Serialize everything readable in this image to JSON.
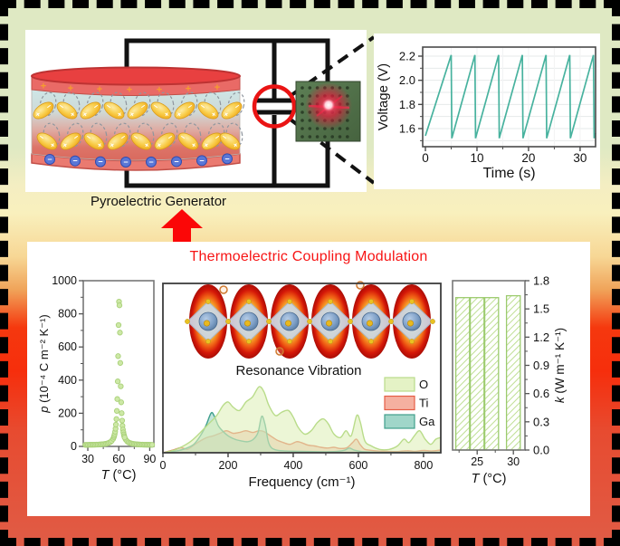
{
  "labels": {
    "pyroelectric_generator": "Pyroelectric Generator"
  },
  "bottom_panel": {
    "title": "Thermoelectric Coupling Modulation",
    "title_color": "#f71414"
  },
  "illustration": {
    "plus_symbol": "+",
    "minus_symbol": "−",
    "accent_red": "#ea1414",
    "description": "pyroelectric disk with dipoles wired to a capacitor (circled) driving a red LED on a green perfboard"
  },
  "chart_data": [
    {
      "id": "voltage-time",
      "type": "line",
      "xlabel": "Time (s)",
      "ylabel": "Voltage (V)",
      "xlim": [
        -0.53,
        33.0
      ],
      "ylim": [
        1.45,
        2.275
      ],
      "xticks": [
        0,
        10,
        20,
        30
      ],
      "ytick_labels": [
        "1.6",
        "1.8",
        "2.0",
        "2.2"
      ],
      "ytick_values": [
        1.6,
        1.8,
        2.0,
        2.2
      ],
      "line_color": "#47b29e",
      "grid": "horizontal every 0.1 V",
      "waveform": {
        "shape": "sawtooth",
        "teeth": 7,
        "first_peak_s": 5.0,
        "period_s": 4.6,
        "v_start": 1.54,
        "v_low": 1.52,
        "v_high": 2.21,
        "drop_time_s": 0.12
      }
    },
    {
      "id": "pyroelectric-coefficient",
      "type": "scatter",
      "xlabel_var": "T",
      "xlabel_rest": " (°C)",
      "ylabel_var": "p",
      "ylabel_rest": " (10⁻⁴ C m⁻² K⁻¹)",
      "xlim": [
        25.6,
        94.0
      ],
      "ylim": [
        0,
        1000
      ],
      "xticks": [
        30,
        60,
        90
      ],
      "yticks": [
        0,
        200,
        400,
        600,
        800,
        1000
      ],
      "marker_fill": "#cde8a6",
      "marker_edge": "#a9d179",
      "peak": {
        "center_C": 60.4,
        "max_value": 888,
        "baseline": 8,
        "half_width_C": 1.25
      },
      "note": "sharp pyroelectric coefficient peak near 60 °C"
    },
    {
      "id": "phonon-dos",
      "type": "area",
      "xlabel": "Frequency (cm⁻¹)",
      "annotation": "Resonance Vibration",
      "xlim": [
        0,
        853
      ],
      "ylim": [
        0,
        1
      ],
      "xticks": [
        0,
        200,
        400,
        600,
        800
      ],
      "legend_position": "right-middle",
      "y_units": "phonon DOS (arb. units, fraction of plot height)",
      "series": [
        {
          "name": "O",
          "fill": "#dff0bb",
          "stroke": "#b9dc8a",
          "fill_opacity": 0.6,
          "points": [
            [
              0,
              0
            ],
            [
              40,
              0.02
            ],
            [
              80,
              0.06
            ],
            [
              110,
              0.11
            ],
            [
              140,
              0.17
            ],
            [
              165,
              0.22
            ],
            [
              185,
              0.28
            ],
            [
              200,
              0.3
            ],
            [
              215,
              0.27
            ],
            [
              235,
              0.25
            ],
            [
              255,
              0.3
            ],
            [
              275,
              0.33
            ],
            [
              295,
              0.39
            ],
            [
              310,
              0.36
            ],
            [
              325,
              0.28
            ],
            [
              345,
              0.22
            ],
            [
              365,
              0.24
            ],
            [
              385,
              0.25
            ],
            [
              400,
              0.21
            ],
            [
              415,
              0.15
            ],
            [
              435,
              0.11
            ],
            [
              455,
              0.13
            ],
            [
              475,
              0.18
            ],
            [
              492,
              0.2
            ],
            [
              508,
              0.17
            ],
            [
              525,
              0.11
            ],
            [
              545,
              0.09
            ],
            [
              562,
              0.13
            ],
            [
              578,
              0.1
            ],
            [
              595,
              0.22
            ],
            [
              606,
              0.18
            ],
            [
              620,
              0.07
            ],
            [
              640,
              0.04
            ],
            [
              665,
              0.02
            ],
            [
              695,
              0.02
            ],
            [
              720,
              0.04
            ],
            [
              740,
              0.08
            ],
            [
              755,
              0.06
            ],
            [
              772,
              0.1
            ],
            [
              788,
              0.13
            ],
            [
              805,
              0.08
            ],
            [
              822,
              0.05
            ],
            [
              838,
              0.08
            ],
            [
              853,
              0.09
            ]
          ]
        },
        {
          "name": "Ti",
          "fill": "#f3a28f",
          "stroke": "#e55d45",
          "fill_opacity": 0.55,
          "points": [
            [
              0,
              0
            ],
            [
              30,
              0.015
            ],
            [
              55,
              0.03
            ],
            [
              75,
              0.02
            ],
            [
              95,
              0.045
            ],
            [
              115,
              0.07
            ],
            [
              135,
              0.09
            ],
            [
              155,
              0.1
            ],
            [
              175,
              0.115
            ],
            [
              195,
              0.13
            ],
            [
              215,
              0.115
            ],
            [
              235,
              0.12
            ],
            [
              255,
              0.13
            ],
            [
              275,
              0.12
            ],
            [
              295,
              0.13
            ],
            [
              310,
              0.125
            ],
            [
              330,
              0.1
            ],
            [
              350,
              0.075
            ],
            [
              370,
              0.06
            ],
            [
              390,
              0.05
            ],
            [
              410,
              0.065
            ],
            [
              425,
              0.06
            ],
            [
              445,
              0.045
            ],
            [
              465,
              0.04
            ],
            [
              485,
              0.032
            ],
            [
              505,
              0.028
            ],
            [
              525,
              0.032
            ],
            [
              545,
              0.025
            ],
            [
              565,
              0.03
            ],
            [
              582,
              0.06
            ],
            [
              594,
              0.08
            ],
            [
              605,
              0.05
            ],
            [
              618,
              0.022
            ],
            [
              635,
              0.015
            ],
            [
              660,
              0.01
            ],
            [
              690,
              0.008
            ],
            [
              720,
              0.007
            ],
            [
              750,
              0.012
            ],
            [
              775,
              0.008
            ],
            [
              800,
              0.014
            ],
            [
              825,
              0.01
            ],
            [
              853,
              0.016
            ]
          ]
        },
        {
          "name": "Ga",
          "fill": "#8fcfc0",
          "stroke": "#3f9f8d",
          "fill_opacity": 0.55,
          "points": [
            [
              0,
              0
            ],
            [
              40,
              0.01
            ],
            [
              70,
              0.025
            ],
            [
              95,
              0.05
            ],
            [
              115,
              0.1
            ],
            [
              132,
              0.16
            ],
            [
              148,
              0.235
            ],
            [
              158,
              0.215
            ],
            [
              170,
              0.16
            ],
            [
              185,
              0.125
            ],
            [
              200,
              0.1
            ],
            [
              220,
              0.08
            ],
            [
              240,
              0.07
            ],
            [
              260,
              0.065
            ],
            [
              278,
              0.08
            ],
            [
              292,
              0.12
            ],
            [
              303,
              0.215
            ],
            [
              313,
              0.17
            ],
            [
              323,
              0.07
            ],
            [
              333,
              0.03
            ],
            [
              350,
              0.015
            ],
            [
              380,
              0.01
            ],
            [
              420,
              0.008
            ],
            [
              460,
              0.007
            ],
            [
              500,
              0.006
            ],
            [
              535,
              0.008
            ],
            [
              558,
              0.015
            ],
            [
              572,
              0.028
            ],
            [
              588,
              0.015
            ],
            [
              610,
              0.007
            ],
            [
              650,
              0.004
            ],
            [
              700,
              0.003
            ],
            [
              760,
              0.003
            ],
            [
              810,
              0.003
            ],
            [
              853,
              0.003
            ]
          ]
        }
      ]
    },
    {
      "id": "thermal-conductivity",
      "type": "bar",
      "xlabel_var": "T",
      "xlabel_rest": " (°C)",
      "ylabel_var": "k",
      "ylabel_rest": " (W m⁻¹ K⁻¹)",
      "xlim": [
        21.6,
        31.6
      ],
      "ylim": [
        0,
        1.8
      ],
      "xticks": [
        25,
        30
      ],
      "ytick_labels": [
        "0.0",
        "0.3",
        "0.6",
        "0.9",
        "1.2",
        "1.5",
        "1.8"
      ],
      "ytick_values": [
        0.0,
        0.3,
        0.6,
        0.9,
        1.2,
        1.5,
        1.8
      ],
      "yaxis_side": "right",
      "categories_T_C": [
        23,
        25,
        27,
        30
      ],
      "values": [
        1.62,
        1.62,
        1.62,
        1.64
      ],
      "bar_width_C": 1.9,
      "hatch_color": "#bfdf94",
      "bar_edge": "#9ccb6e"
    }
  ]
}
